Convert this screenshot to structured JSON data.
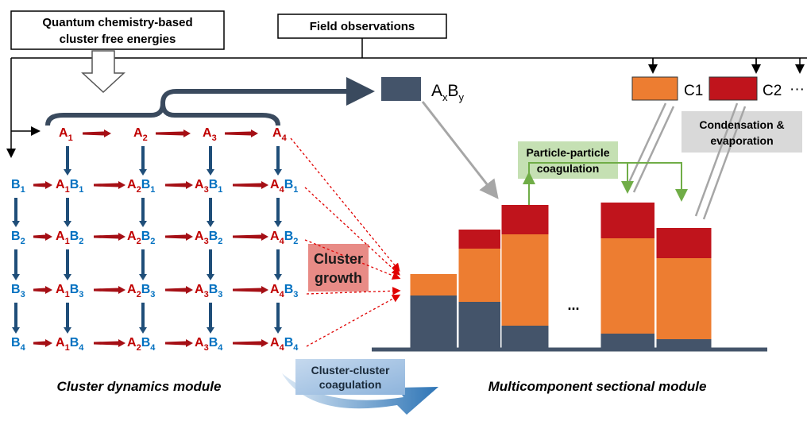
{
  "inputs": {
    "quantum": [
      "Quantum chemistry-based",
      "cluster free energies"
    ],
    "field": "Field observations"
  },
  "grid": {
    "a": "A",
    "b": "B",
    "indices": [
      "1",
      "2",
      "3",
      "4"
    ]
  },
  "product": {
    "a": "A",
    "x": "x",
    "b": "B",
    "y": "y"
  },
  "condensables": [
    "C1",
    "C2"
  ],
  "more": "···",
  "condensation": [
    "Condensation &",
    "evaporation"
  ],
  "particle_coagulation": [
    "Particle-particle",
    "coagulation"
  ],
  "cluster_growth": [
    "Cluster",
    "growth"
  ],
  "cluster_coagulation": [
    "Cluster-cluster",
    "coagulation"
  ],
  "ellipsis": "...",
  "modules": {
    "left": "Cluster dynamics module",
    "right": "Multicomponent sectional module"
  }
}
